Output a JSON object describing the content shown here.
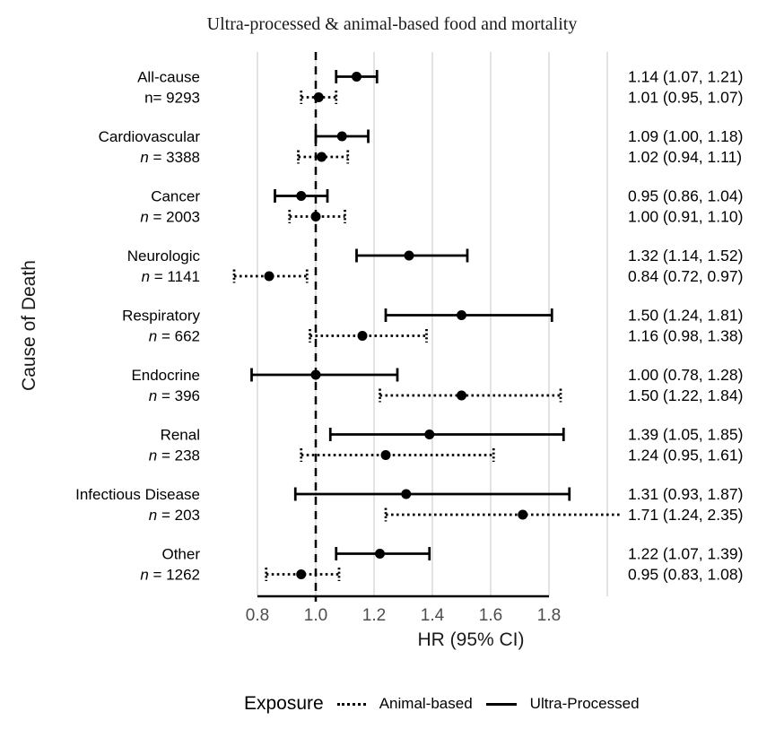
{
  "title": "Ultra-processed & animal-based food and mortality",
  "axes": {
    "x_label": "HR (95% CI)",
    "y_label": "Cause of Death",
    "x_tick_labels": [
      "0.8",
      "1.0",
      "1.2",
      "1.4",
      "1.6",
      "1.8"
    ]
  },
  "legend": {
    "title": "Exposure",
    "items": [
      {
        "label": "Animal-based",
        "line_style": "dotted"
      },
      {
        "label": "Ultra-Processed",
        "line_style": "solid"
      }
    ]
  },
  "colors": {
    "ink": "#000000",
    "grid": "#e3e3e3",
    "axis_text": "#4d4d4d"
  },
  "chart_data": {
    "type": "forest",
    "title": "Ultra-processed & animal-based food and mortality",
    "xlabel": "HR (95% CI)",
    "ylabel": "Cause of Death",
    "x_axis": {
      "ticks": [
        0.8,
        1.0,
        1.2,
        1.4,
        1.6,
        1.8
      ],
      "gridlines": [
        0.8,
        1.0,
        1.2,
        1.4,
        1.6,
        1.8,
        2.0
      ],
      "reference_line": 1.0
    },
    "series_order": [
      "Ultra-Processed",
      "Animal-based"
    ],
    "rows": [
      {
        "cause": "All-cause",
        "n_text": "n= 9293",
        "n_italic": false,
        "ultra_processed": {
          "hr": 1.14,
          "lo": 1.07,
          "hi": 1.21,
          "label": "1.14 (1.07, 1.21)"
        },
        "animal_based": {
          "hr": 1.01,
          "lo": 0.95,
          "hi": 1.07,
          "label": "1.01 (0.95, 1.07)"
        }
      },
      {
        "cause": "Cardiovascular",
        "n_text": "n = 3388",
        "n_italic": true,
        "ultra_processed": {
          "hr": 1.09,
          "lo": 1.0,
          "hi": 1.18,
          "label": "1.09 (1.00, 1.18)"
        },
        "animal_based": {
          "hr": 1.02,
          "lo": 0.94,
          "hi": 1.11,
          "label": "1.02 (0.94, 1.11)"
        }
      },
      {
        "cause": "Cancer",
        "n_text": "n = 2003",
        "n_italic": true,
        "ultra_processed": {
          "hr": 0.95,
          "lo": 0.86,
          "hi": 1.04,
          "label": "0.95 (0.86, 1.04)"
        },
        "animal_based": {
          "hr": 1.0,
          "lo": 0.91,
          "hi": 1.1,
          "label": "1.00 (0.91, 1.10)"
        }
      },
      {
        "cause": "Neurologic",
        "n_text": "n = 1141",
        "n_italic": true,
        "ultra_processed": {
          "hr": 1.32,
          "lo": 1.14,
          "hi": 1.52,
          "label": "1.32 (1.14, 1.52)"
        },
        "animal_based": {
          "hr": 0.84,
          "lo": 0.72,
          "hi": 0.97,
          "label": "0.84 (0.72, 0.97)"
        }
      },
      {
        "cause": "Respiratory",
        "n_text": "n = 662",
        "n_italic": true,
        "ultra_processed": {
          "hr": 1.5,
          "lo": 1.24,
          "hi": 1.81,
          "label": "1.50 (1.24, 1.81)"
        },
        "animal_based": {
          "hr": 1.16,
          "lo": 0.98,
          "hi": 1.38,
          "label": "1.16 (0.98, 1.38)"
        }
      },
      {
        "cause": "Endocrine",
        "n_text": "n = 396",
        "n_italic": true,
        "ultra_processed": {
          "hr": 1.0,
          "lo": 0.78,
          "hi": 1.28,
          "label": "1.00 (0.78, 1.28)"
        },
        "animal_based": {
          "hr": 1.5,
          "lo": 1.22,
          "hi": 1.84,
          "label": "1.50 (1.22, 1.84)"
        }
      },
      {
        "cause": "Renal",
        "n_text": "n = 238",
        "n_italic": true,
        "ultra_processed": {
          "hr": 1.39,
          "lo": 1.05,
          "hi": 1.85,
          "label": "1.39 (1.05, 1.85)"
        },
        "animal_based": {
          "hr": 1.24,
          "lo": 0.95,
          "hi": 1.61,
          "label": "1.24 (0.95, 1.61)"
        }
      },
      {
        "cause": "Infectious Disease",
        "n_text": "n = 203",
        "n_italic": true,
        "ultra_processed": {
          "hr": 1.31,
          "lo": 0.93,
          "hi": 1.87,
          "label": "1.31 (0.93, 1.87)"
        },
        "animal_based": {
          "hr": 1.71,
          "lo": 1.24,
          "hi": 2.35,
          "label": "1.71 (1.24, 2.35)"
        }
      },
      {
        "cause": "Other",
        "n_text": "n = 1262",
        "n_italic": true,
        "ultra_processed": {
          "hr": 1.22,
          "lo": 1.07,
          "hi": 1.39,
          "label": "1.22 (1.07, 1.39)"
        },
        "animal_based": {
          "hr": 0.95,
          "lo": 0.83,
          "hi": 1.08,
          "label": "0.95 (0.83, 1.08)"
        }
      }
    ]
  }
}
